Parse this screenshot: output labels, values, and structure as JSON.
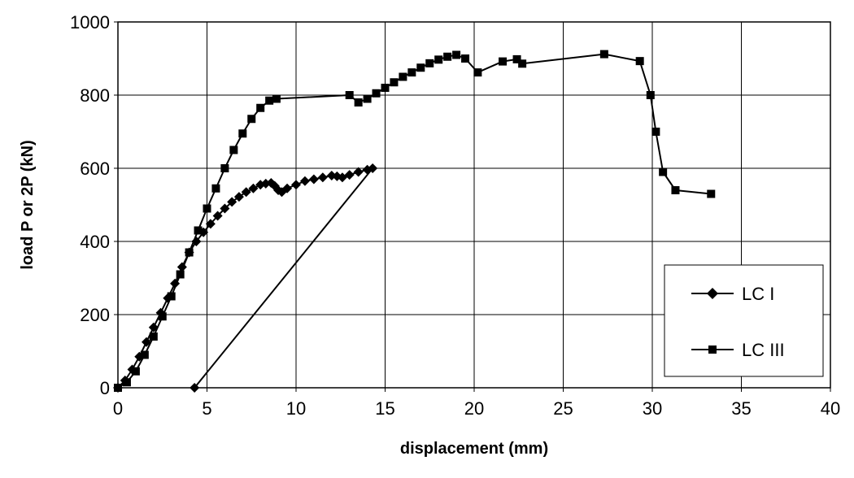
{
  "chart_data": {
    "type": "line",
    "title": "",
    "xlabel": "displacement (mm)",
    "ylabel": "load P or 2P (kN)",
    "xlim": [
      0,
      40
    ],
    "ylim": [
      0,
      1000
    ],
    "x_ticks": [
      "0",
      "5",
      "10",
      "15",
      "20",
      "25",
      "30",
      "35",
      "40"
    ],
    "y_ticks": [
      "0",
      "200",
      "400",
      "600",
      "800",
      "1000"
    ],
    "grid": true,
    "legend_position": "bottom-right",
    "series": [
      {
        "name": "LC I",
        "marker": "diamond",
        "color": "#000000",
        "x": [
          0,
          0.4,
          0.8,
          1.2,
          1.6,
          2.0,
          2.4,
          2.8,
          3.2,
          3.6,
          4.0,
          4.4,
          4.8,
          5.2,
          5.6,
          6.0,
          6.4,
          6.8,
          7.2,
          7.6,
          8.0,
          8.3,
          8.6,
          8.8,
          9.0,
          9.2,
          9.5,
          10.0,
          10.5,
          11.0,
          11.5,
          12.0,
          12.3,
          12.6,
          13.0,
          13.5,
          14.0,
          14.3,
          4.3
        ],
        "y": [
          0,
          20,
          50,
          85,
          125,
          165,
          205,
          245,
          285,
          330,
          370,
          400,
          425,
          448,
          470,
          490,
          508,
          522,
          535,
          545,
          555,
          558,
          560,
          552,
          540,
          535,
          545,
          555,
          565,
          570,
          575,
          580,
          578,
          575,
          582,
          590,
          596,
          600,
          0
        ]
      },
      {
        "name": "LC III",
        "marker": "square",
        "color": "#000000",
        "x": [
          0,
          0.5,
          1.0,
          1.5,
          2.0,
          2.5,
          3.0,
          3.5,
          4.0,
          4.5,
          5.0,
          5.5,
          6.0,
          6.5,
          7.0,
          7.5,
          8.0,
          8.5,
          8.9,
          13.0,
          13.5,
          14.0,
          14.5,
          15.0,
          15.5,
          16.0,
          16.5,
          17.0,
          17.5,
          18.0,
          18.5,
          19.0,
          19.5,
          20.2,
          21.6,
          22.4,
          22.7,
          27.3,
          29.3,
          29.9,
          30.2,
          30.6,
          31.3,
          33.3
        ],
        "y": [
          0,
          15,
          45,
          90,
          140,
          195,
          250,
          310,
          370,
          430,
          490,
          545,
          600,
          650,
          695,
          735,
          765,
          785,
          790,
          800,
          780,
          790,
          805,
          820,
          835,
          850,
          862,
          875,
          887,
          897,
          905,
          910,
          900,
          862,
          892,
          898,
          886,
          912,
          893,
          800,
          700,
          590,
          540,
          530
        ]
      }
    ]
  }
}
